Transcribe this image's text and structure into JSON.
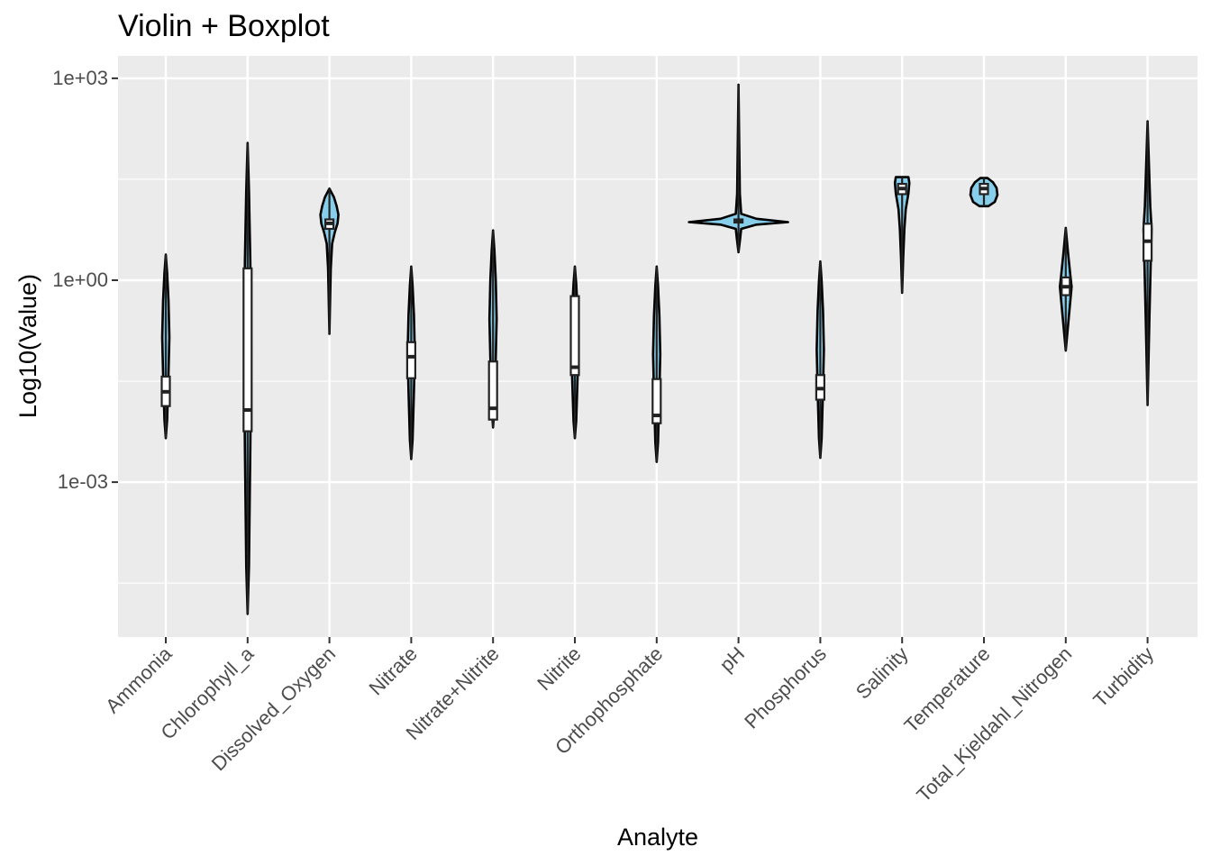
{
  "chart_data": {
    "type": "violin",
    "title": "Violin + Boxplot",
    "xlabel": "Analyte",
    "ylabel": "Log10(Value)",
    "y_scale": "log10",
    "ylim": [
      5e-06,
      2000
    ],
    "y_ticks": [
      {
        "value": 0.001,
        "label": "1e-03"
      },
      {
        "value": 1,
        "label": "1e+00"
      },
      {
        "value": 1000,
        "label": "1e+03"
      }
    ],
    "grid": true,
    "colors": {
      "panel": "#ebebeb",
      "grid": "#ffffff",
      "violin_fill": "#87ceeb",
      "outline": "#000000",
      "box_fill": "#ffffff",
      "tick_text": "#4d4d4d"
    },
    "categories": [
      "Ammonia",
      "Chlorophyll_a",
      "Dissolved_Oxygen",
      "Nitrate",
      "Nitrate+Nitrite",
      "Nitrite",
      "Orthophosphate",
      "pH",
      "Phosphorus",
      "Salinity",
      "Temperature",
      "Total_Kjeldahl_Nitrogen",
      "Turbidity"
    ],
    "series": [
      {
        "category": "Ammonia",
        "min": 0.0045,
        "q1": 0.0135,
        "median": 0.022,
        "q3": 0.037,
        "max": 2.4
      },
      {
        "category": "Chlorophyll_a",
        "min": 1.1e-05,
        "q1": 0.0057,
        "median": 0.0118,
        "q3": 1.5,
        "max": 110
      },
      {
        "category": "Dissolved_Oxygen",
        "min": 0.16,
        "q1": 5.8,
        "median": 7.0,
        "q3": 8.0,
        "max": 23
      },
      {
        "category": "Nitrate",
        "min": 0.0022,
        "q1": 0.035,
        "median": 0.073,
        "q3": 0.12,
        "max": 1.6
      },
      {
        "category": "Nitrate+Nitrite",
        "min": 0.0065,
        "q1": 0.0085,
        "median": 0.0125,
        "q3": 0.062,
        "max": 5.5
      },
      {
        "category": "Nitrite",
        "min": 0.0045,
        "q1": 0.039,
        "median": 0.051,
        "q3": 0.58,
        "max": 1.6
      },
      {
        "category": "Orthophosphate",
        "min": 0.002,
        "q1": 0.0075,
        "median": 0.0098,
        "q3": 0.034,
        "max": 1.6
      },
      {
        "category": "pH",
        "min": 2.6,
        "q1": 7.2,
        "median": 7.7,
        "q3": 8.0,
        "max": 800
      },
      {
        "category": "Phosphorus",
        "min": 0.0023,
        "q1": 0.0168,
        "median": 0.0245,
        "q3": 0.039,
        "max": 1.9
      },
      {
        "category": "Salinity",
        "min": 0.65,
        "q1": 19,
        "median": 23,
        "q3": 27,
        "max": 34
      },
      {
        "category": "Temperature",
        "min": 12.6,
        "q1": 19,
        "median": 23,
        "q3": 27,
        "max": 33
      },
      {
        "category": "Total_Kjeldahl_Nitrogen",
        "min": 0.09,
        "q1": 0.6,
        "median": 0.8,
        "q3": 1.1,
        "max": 6
      },
      {
        "category": "Turbidity",
        "min": 0.014,
        "q1": 1.95,
        "median": 3.8,
        "q3": 6.9,
        "max": 230
      }
    ]
  }
}
